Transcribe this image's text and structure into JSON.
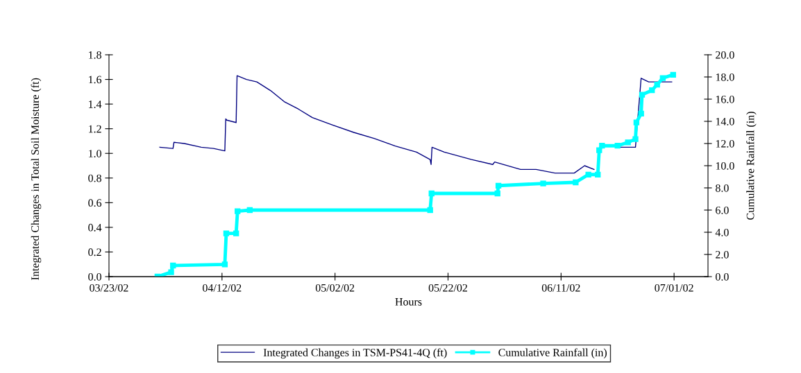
{
  "chart_data": {
    "type": "line",
    "xlabel": "Hours",
    "ylabel": "Integrated Changes in Total Soil Moisture (ft)",
    "y2label": "Cumulative Rainfall (in)",
    "xlim": [
      "2002-03-23",
      "2002-07-07"
    ],
    "xticks": [
      {
        "value": "2002-03-23",
        "label": "03/23/02"
      },
      {
        "value": "2002-04-12",
        "label": "04/12/02"
      },
      {
        "value": "2002-05-02",
        "label": "05/02/02"
      },
      {
        "value": "2002-05-22",
        "label": "05/22/02"
      },
      {
        "value": "2002-06-11",
        "label": "06/11/02"
      },
      {
        "value": "2002-07-01",
        "label": "07/01/02"
      }
    ],
    "ylim": [
      0,
      1.8
    ],
    "yticks": [
      {
        "value": 0,
        "label": "0.0"
      },
      0.2,
      0.4,
      0.6,
      0.8,
      {
        "value": 1,
        "label": "1.0"
      },
      1.2,
      1.4,
      1.6,
      1.8
    ],
    "y2lim": [
      0,
      20
    ],
    "y2ticks": [
      {
        "value": 0,
        "label": "0.0"
      },
      {
        "value": 2,
        "label": "2.0"
      },
      {
        "value": 4,
        "label": "4.0"
      },
      {
        "value": 6,
        "label": "6.0"
      },
      {
        "value": 8,
        "label": "8.0"
      },
      {
        "value": 10,
        "label": "10.0"
      },
      {
        "value": 12,
        "label": "12.0"
      },
      {
        "value": 14,
        "label": "14.0"
      },
      {
        "value": 16,
        "label": "16.0"
      },
      {
        "value": 18,
        "label": "18.0"
      },
      {
        "value": 20,
        "label": "20.0"
      }
    ],
    "grid": false,
    "legend": "bottom",
    "series": [
      {
        "name": "Integrated Changes in TSM-PS41-4Q (ft)",
        "color": "#000080",
        "marker": "none",
        "x": [
          "2002-04-01T00:00",
          "2002-04-03T08:00",
          "2002-04-03T12:00",
          "2002-04-05T08:00",
          "2002-04-08T08:00",
          "2002-04-10T12:00",
          "2002-04-12T12:00",
          "2002-04-12T16:00",
          "2002-04-12T20:00",
          "2002-04-14T12:00",
          "2002-04-14T16:00",
          "2002-04-16T08:00",
          "2002-04-18T04:00",
          "2002-04-20T14:00",
          "2002-04-23T00:00",
          "2002-04-25T12:00",
          "2002-04-28T00:00",
          "2002-05-01T14:00",
          "2002-05-05T08:00",
          "2002-05-09T00:00",
          "2002-05-12T16:00",
          "2002-05-16T10:00",
          "2002-05-18T20:00",
          "2002-05-19T00:00",
          "2002-05-19T04:00",
          "2002-05-21T08:00",
          "2002-05-26T04:00",
          "2002-05-29T22:00",
          "2002-05-30T06:00",
          "2002-06-03T20:00",
          "2002-06-06T14:00",
          "2002-06-09T22:00",
          "2002-06-13T08:00",
          "2002-06-15T04:00",
          "2002-06-16T20:00",
          "2002-06-17T22:00",
          "2002-06-21T08:00",
          "2002-06-24T04:00",
          "2002-06-25T04:00",
          "2002-06-26T12:00",
          "2002-06-30T14:00"
        ],
        "values": [
          1.05,
          1.04,
          1.09,
          1.08,
          1.05,
          1.04,
          1.02,
          1.28,
          1.27,
          1.25,
          1.63,
          1.6,
          1.58,
          1.51,
          1.42,
          1.36,
          1.29,
          1.23,
          1.17,
          1.12,
          1.06,
          1.01,
          0.95,
          0.91,
          1.05,
          1.01,
          0.95,
          0.91,
          0.93,
          0.87,
          0.87,
          0.84,
          0.84,
          0.9,
          0.87,
          null,
          1.05,
          1.05,
          1.61,
          1.58,
          1.58
        ]
      },
      {
        "name": "Cumulative Rainfall (in)",
        "color": "#00ffff",
        "axis": "y2",
        "marker": "square",
        "x": [
          "2002-03-31T14:00",
          "2002-04-03T00:00",
          "2002-04-03T08:00",
          "2002-04-12T12:00",
          "2002-04-12T18:00",
          "2002-04-14T12:00",
          "2002-04-14T18:00",
          "2002-04-16T22:00",
          "2002-05-18T20:00",
          "2002-05-19T02:00",
          "2002-05-30T18:00",
          "2002-05-30T22:00",
          "2002-06-07T20:00",
          "2002-06-13T14:00",
          "2002-06-15T20:00",
          "2002-06-17T12:00",
          "2002-06-17T18:00",
          "2002-06-18T06:00",
          "2002-06-21T00:00",
          "2002-06-22T20:00",
          "2002-06-24T04:00",
          "2002-06-24T08:00",
          "2002-06-25T04:00",
          "2002-06-25T08:00",
          "2002-06-27T02:00",
          "2002-06-28T00:00",
          "2002-06-29T00:00",
          "2002-06-30T20:00"
        ],
        "values": [
          0,
          0.4,
          1.0,
          1.1,
          3.9,
          3.9,
          5.9,
          6.0,
          6.0,
          7.5,
          7.5,
          8.2,
          8.4,
          8.5,
          9.2,
          9.2,
          11.4,
          11.8,
          11.8,
          12.1,
          12.4,
          13.9,
          14.7,
          16.4,
          16.8,
          17.3,
          17.9,
          18.2
        ]
      }
    ]
  }
}
